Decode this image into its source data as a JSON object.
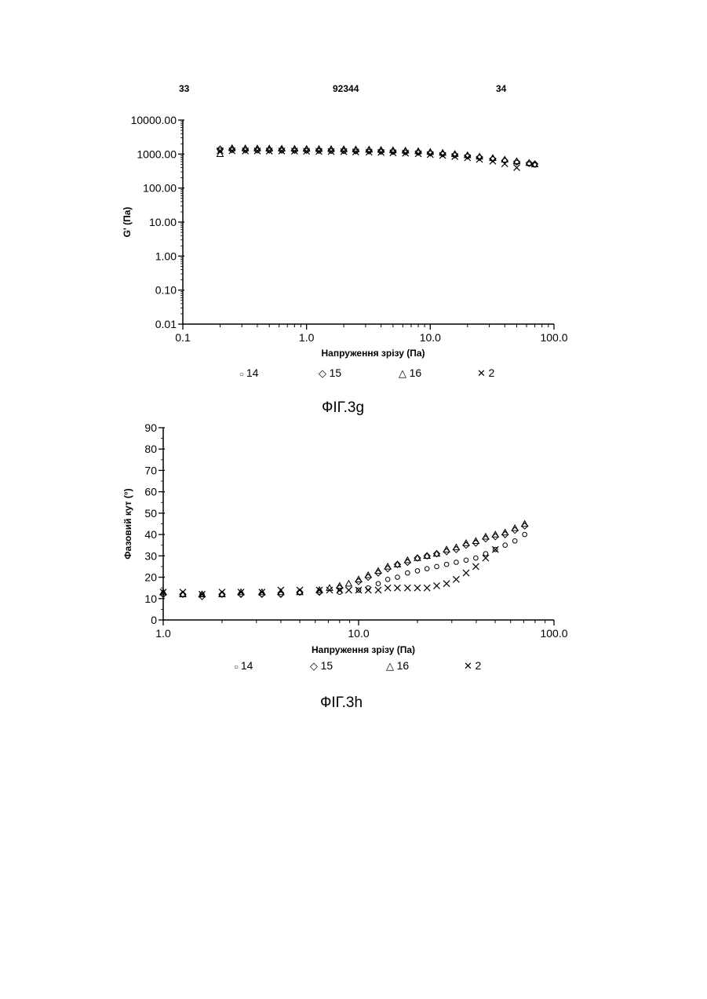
{
  "header": {
    "left_page": "33",
    "doc_number": "92344",
    "right_page": "34"
  },
  "figures": [
    {
      "caption": "ФІГ.3g"
    },
    {
      "caption": "ФІГ.3h"
    }
  ],
  "chart_data": [
    {
      "type": "scatter",
      "xlabel": "Напруження зрізу (Па)",
      "ylabel": "G' (Па)",
      "x_scale": "log",
      "y_scale": "log",
      "xlim": [
        0.1,
        100.0
      ],
      "ylim": [
        0.01,
        10000.0
      ],
      "x_ticks": [
        "0.1",
        "1.0",
        "10.0",
        "100.0"
      ],
      "y_ticks": [
        "0.01",
        "0.10",
        "1.00",
        "10.00",
        "100.00",
        "1000.00",
        "10000.00"
      ],
      "legend": [
        "14",
        "15",
        "16",
        "2"
      ],
      "legend_placement": "bottom",
      "series": [
        {
          "name": "14",
          "marker": "circle",
          "x": [
            0.2,
            0.25,
            0.32,
            0.4,
            0.5,
            0.63,
            0.8,
            1.0,
            1.26,
            1.58,
            2.0,
            2.5,
            3.2,
            4.0,
            5.0,
            6.3,
            8.0,
            10.0,
            12.6,
            15.8,
            20.0,
            25.0,
            32.0,
            40.0,
            50.0,
            63.0,
            70.0
          ],
          "y": [
            1300,
            1300,
            1290,
            1280,
            1280,
            1270,
            1260,
            1250,
            1240,
            1230,
            1220,
            1200,
            1190,
            1170,
            1150,
            1120,
            1090,
            1050,
            1000,
            940,
            870,
            800,
            720,
            640,
            570,
            510,
            480
          ]
        },
        {
          "name": "15",
          "marker": "diamond",
          "x": [
            0.2,
            0.25,
            0.32,
            0.4,
            0.5,
            0.63,
            0.8,
            1.0,
            1.26,
            1.58,
            2.0,
            2.5,
            3.2,
            4.0,
            5.0,
            6.3,
            8.0,
            10.0,
            12.6,
            15.8,
            20.0,
            25.0,
            32.0,
            40.0,
            50.0,
            63.0,
            70.0
          ],
          "y": [
            1400,
            1350,
            1340,
            1330,
            1320,
            1310,
            1300,
            1300,
            1290,
            1280,
            1270,
            1260,
            1240,
            1220,
            1200,
            1170,
            1130,
            1080,
            1020,
            950,
            880,
            800,
            720,
            650,
            590,
            540,
            510
          ]
        },
        {
          "name": "16",
          "marker": "triangle",
          "x": [
            0.2,
            0.25,
            0.32,
            0.4,
            0.5,
            0.63,
            0.8,
            1.0,
            1.26,
            1.58,
            2.0,
            2.5,
            3.2,
            4.0,
            5.0,
            6.3,
            8.0,
            10.0,
            12.6,
            15.8,
            20.0,
            25.0,
            32.0,
            40.0,
            50.0,
            63.0,
            70.0
          ],
          "y": [
            1000,
            1500,
            1480,
            1470,
            1460,
            1450,
            1440,
            1430,
            1420,
            1410,
            1400,
            1380,
            1360,
            1330,
            1300,
            1270,
            1220,
            1160,
            1090,
            1010,
            930,
            850,
            770,
            690,
            620,
            550,
            500
          ]
        },
        {
          "name": "2",
          "marker": "x",
          "x": [
            0.2,
            0.25,
            0.32,
            0.4,
            0.5,
            0.63,
            0.8,
            1.0,
            1.26,
            1.58,
            2.0,
            2.5,
            3.2,
            4.0,
            5.0,
            6.3,
            8.0,
            10.0,
            12.6,
            15.8,
            20.0,
            25.0,
            32.0,
            40.0,
            50.0
          ],
          "y": [
            1250,
            1250,
            1240,
            1240,
            1230,
            1230,
            1220,
            1210,
            1200,
            1190,
            1180,
            1160,
            1140,
            1120,
            1090,
            1060,
            1020,
            970,
            910,
            850,
            780,
            700,
            620,
            520,
            400
          ]
        }
      ]
    },
    {
      "type": "scatter",
      "xlabel": "Напруження зрізу (Па)",
      "ylabel": "Фазовий кут (°)",
      "x_scale": "log",
      "y_scale": "linear",
      "xlim": [
        1.0,
        100.0
      ],
      "ylim": [
        0,
        90
      ],
      "x_ticks": [
        "1.0",
        "10.0",
        "100.0"
      ],
      "y_ticks": [
        "0",
        "10",
        "20",
        "30",
        "40",
        "50",
        "60",
        "70",
        "80",
        "90"
      ],
      "legend": [
        "14",
        "15",
        "16",
        "2"
      ],
      "legend_placement": "bottom",
      "series": [
        {
          "name": "14",
          "marker": "circle",
          "x": [
            1.0,
            1.26,
            1.58,
            2.0,
            2.5,
            3.2,
            4.0,
            5.0,
            6.3,
            8.0,
            10.0,
            11.2,
            12.6,
            14.1,
            15.8,
            17.8,
            20.0,
            22.4,
            25.1,
            28.2,
            31.6,
            35.5,
            39.8,
            44.7,
            50.1,
            56.2,
            63.1,
            70.8
          ],
          "y": [
            12,
            12,
            12,
            12,
            12,
            12,
            12,
            13,
            13,
            13,
            14,
            15,
            17,
            19,
            20,
            22,
            23,
            24,
            25,
            26,
            27,
            28,
            29,
            31,
            33,
            35,
            37,
            40
          ]
        },
        {
          "name": "15",
          "marker": "diamond",
          "x": [
            1.0,
            1.26,
            1.58,
            2.0,
            2.5,
            3.2,
            4.0,
            5.0,
            6.3,
            8.0,
            10.0,
            11.2,
            12.6,
            14.1,
            15.8,
            17.8,
            20.0,
            22.4,
            25.1,
            28.2,
            31.6,
            35.5,
            39.8,
            44.7,
            50.1,
            56.2,
            63.1,
            70.8
          ],
          "y": [
            12,
            12,
            11,
            12,
            12,
            12,
            12,
            13,
            13,
            15,
            18,
            20,
            22,
            24,
            26,
            27,
            29,
            30,
            31,
            32,
            33,
            35,
            36,
            38,
            39,
            40,
            42,
            44
          ]
        },
        {
          "name": "16",
          "marker": "triangle",
          "x": [
            1.0,
            1.26,
            1.58,
            2.0,
            2.5,
            3.2,
            4.0,
            5.0,
            6.3,
            7.1,
            8.0,
            8.9,
            10.0,
            11.2,
            12.6,
            14.1,
            15.8,
            17.8,
            20.0,
            22.4,
            25.1,
            28.2,
            31.6,
            35.5,
            39.8,
            44.7,
            50.1,
            56.2,
            63.1,
            70.8
          ],
          "y": [
            13,
            12,
            12,
            12,
            13,
            13,
            13,
            13,
            14,
            15,
            16,
            17,
            19,
            21,
            23,
            25,
            26,
            28,
            29,
            30,
            31,
            33,
            34,
            36,
            37,
            39,
            40,
            41,
            43,
            45
          ]
        },
        {
          "name": "2",
          "marker": "x",
          "x": [
            1.0,
            1.26,
            1.58,
            2.0,
            2.5,
            3.2,
            4.0,
            5.0,
            6.3,
            7.1,
            8.0,
            8.9,
            10.0,
            11.2,
            12.6,
            14.1,
            15.8,
            17.8,
            20.0,
            22.4,
            25.1,
            28.2,
            31.6,
            35.5,
            39.8,
            44.7,
            50.1
          ],
          "y": [
            13,
            13,
            12,
            13,
            13,
            13,
            14,
            14,
            14,
            14,
            14,
            14,
            14,
            14,
            14,
            15,
            15,
            15,
            15,
            15,
            16,
            17,
            19,
            22,
            25,
            29,
            33
          ]
        }
      ]
    }
  ]
}
